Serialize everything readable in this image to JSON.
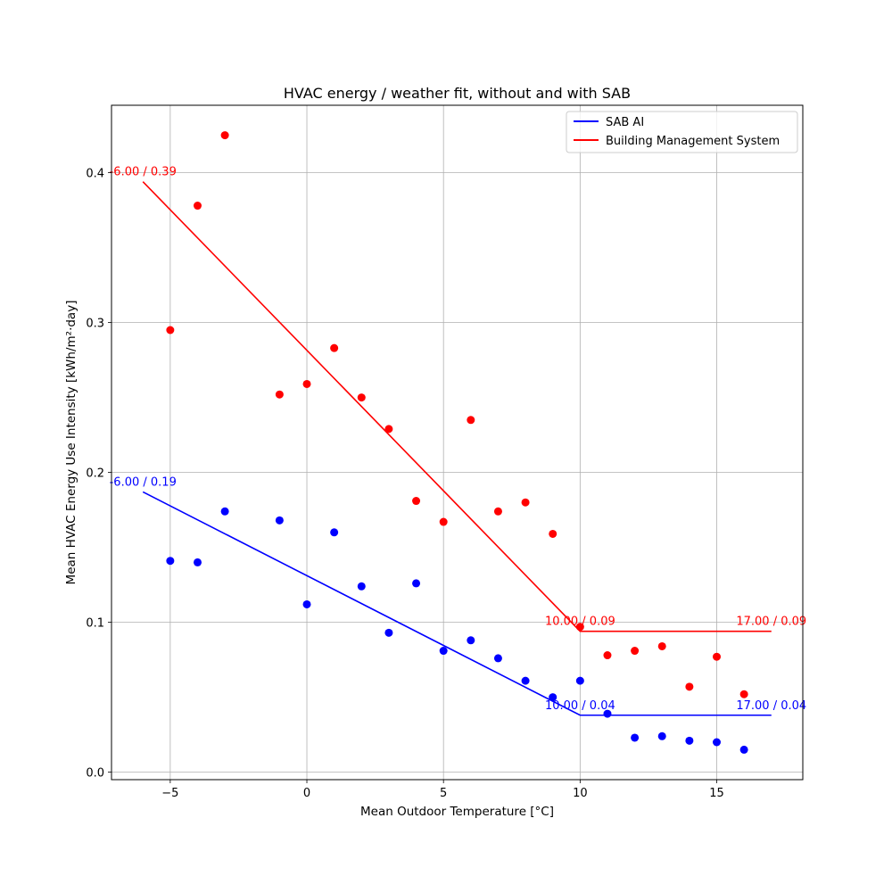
{
  "chart_data": {
    "type": "scatter",
    "title": "HVAC energy / weather fit, without and with SAB",
    "xlabel": "Mean Outdoor Temperature [°C]",
    "ylabel": "Mean HVAC Energy Use Intensity [kWh/m²·day]",
    "xlim": [
      -7.15,
      18.15
    ],
    "ylim": [
      -0.005,
      0.445
    ],
    "xticks": [
      -5,
      0,
      5,
      10,
      15
    ],
    "xtick_labels": [
      "−5",
      "0",
      "5",
      "10",
      "15"
    ],
    "yticks": [
      0.0,
      0.1,
      0.2,
      0.3,
      0.4
    ],
    "ytick_labels": [
      "0.0",
      "0.1",
      "0.2",
      "0.3",
      "0.4"
    ],
    "grid": true,
    "legend_position": "top-right",
    "series": [
      {
        "name": "SAB AI",
        "color": "#0000ff",
        "points": [
          [
            -5,
            0.141
          ],
          [
            -4,
            0.14
          ],
          [
            -3,
            0.174
          ],
          [
            -1,
            0.168
          ],
          [
            0,
            0.112
          ],
          [
            1,
            0.16
          ],
          [
            2,
            0.124
          ],
          [
            3,
            0.093
          ],
          [
            4,
            0.126
          ],
          [
            5,
            0.081
          ],
          [
            6,
            0.088
          ],
          [
            7,
            0.076
          ],
          [
            8,
            0.061
          ],
          [
            9,
            0.05
          ],
          [
            10,
            0.061
          ],
          [
            11,
            0.039
          ],
          [
            12,
            0.023
          ],
          [
            13,
            0.024
          ],
          [
            14,
            0.021
          ],
          [
            15,
            0.02
          ],
          [
            16,
            0.015
          ]
        ],
        "fit": [
          [
            -6,
            0.187
          ],
          [
            10,
            0.038
          ],
          [
            17,
            0.038
          ]
        ],
        "annotations": [
          {
            "x": -6,
            "y": 0.187,
            "text": "-6.00 / 0.19"
          },
          {
            "x": 10,
            "y": 0.038,
            "text": "10.00 / 0.04"
          },
          {
            "x": 17,
            "y": 0.038,
            "text": "17.00 / 0.04"
          }
        ]
      },
      {
        "name": "Building Management System",
        "color": "#ff0000",
        "points": [
          [
            -5,
            0.295
          ],
          [
            -4,
            0.378
          ],
          [
            -3,
            0.425
          ],
          [
            -1,
            0.252
          ],
          [
            0,
            0.259
          ],
          [
            1,
            0.283
          ],
          [
            2,
            0.25
          ],
          [
            3,
            0.229
          ],
          [
            4,
            0.181
          ],
          [
            5,
            0.167
          ],
          [
            6,
            0.235
          ],
          [
            7,
            0.174
          ],
          [
            8,
            0.18
          ],
          [
            9,
            0.159
          ],
          [
            10,
            0.097
          ],
          [
            11,
            0.078
          ],
          [
            12,
            0.081
          ],
          [
            13,
            0.084
          ],
          [
            14,
            0.057
          ],
          [
            15,
            0.077
          ],
          [
            16,
            0.052
          ]
        ],
        "fit": [
          [
            -6,
            0.394
          ],
          [
            10,
            0.094
          ],
          [
            17,
            0.094
          ]
        ],
        "annotations": [
          {
            "x": -6,
            "y": 0.394,
            "text": "-6.00 / 0.39"
          },
          {
            "x": 10,
            "y": 0.094,
            "text": "10.00 / 0.09"
          },
          {
            "x": 17,
            "y": 0.094,
            "text": "17.00 / 0.09"
          }
        ]
      }
    ]
  }
}
